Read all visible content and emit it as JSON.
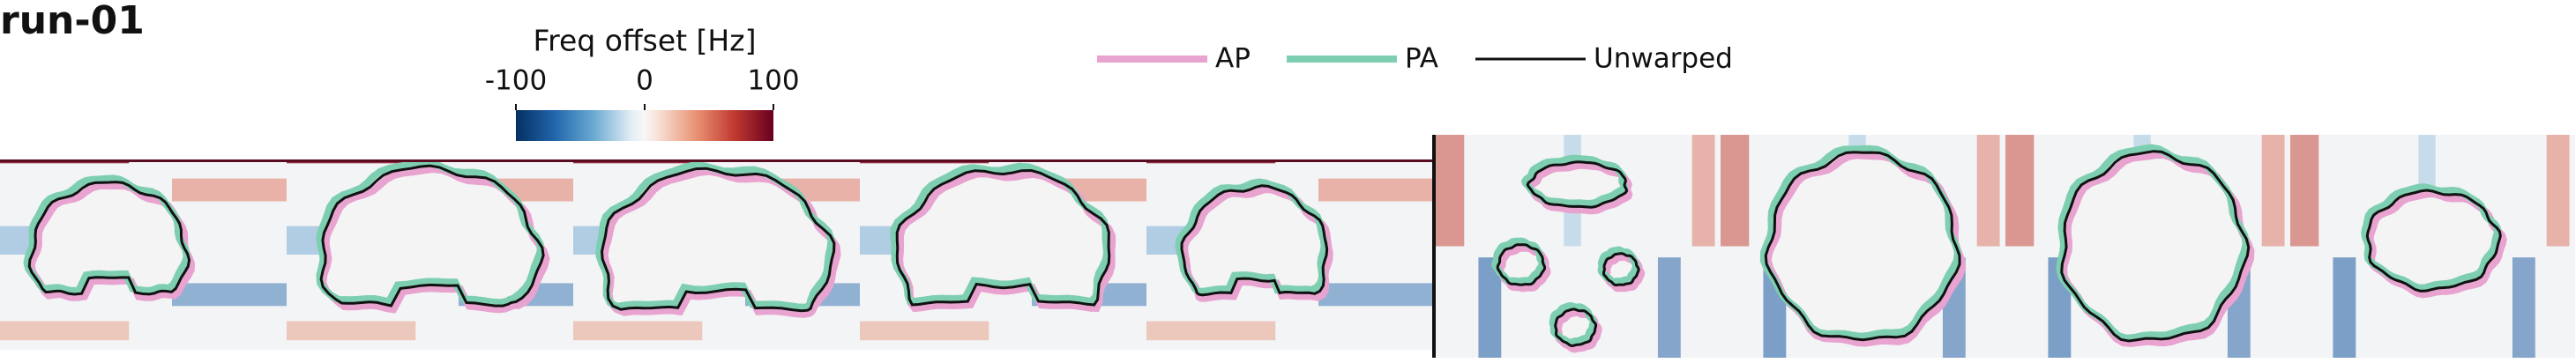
{
  "title": "run-01",
  "colorbar": {
    "label": "Freq offset [Hz]",
    "lim": [
      -100,
      100
    ],
    "ticks": [
      -100,
      0,
      100
    ]
  },
  "legend": [
    {
      "name": "AP",
      "color": "#e8a3d0"
    },
    {
      "name": "PA",
      "color": "#7ecfb1"
    },
    {
      "name": "Unwarped",
      "color": "#111111"
    }
  ]
}
